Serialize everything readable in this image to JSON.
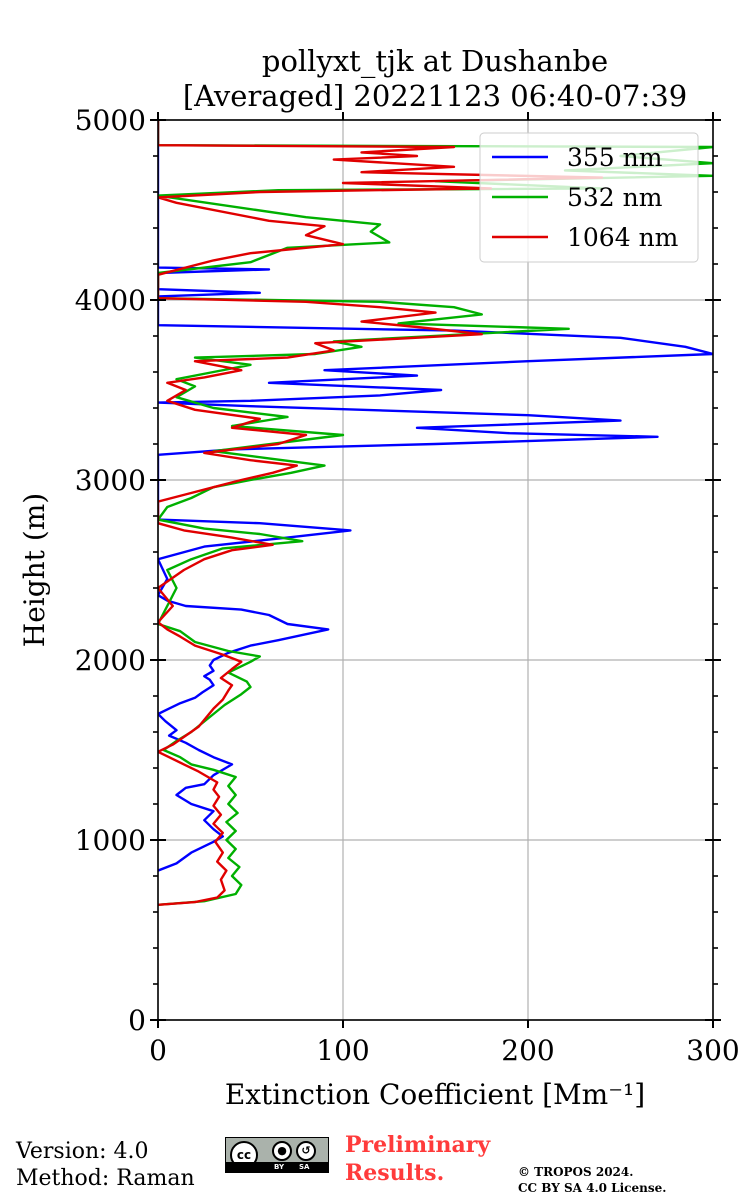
{
  "chart_data": {
    "type": "line",
    "title": [
      "pollyxt_tjk at Dushanbe",
      "[Averaged] 20221123 06:40-07:39"
    ],
    "xlabel": "Extinction Coefficient [Mm⁻¹]",
    "ylabel": "Height (m)",
    "xlim": [
      0,
      300
    ],
    "ylim": [
      0,
      5000
    ],
    "xticks": [
      0,
      100,
      200,
      300
    ],
    "yticks": [
      0,
      1000,
      2000,
      3000,
      4000,
      5000
    ],
    "grid": true,
    "legend_position": "top-right",
    "series": [
      {
        "name": "355 nm",
        "color": "#0000ff",
        "points": [
          [
            0,
            830
          ],
          [
            10,
            870
          ],
          [
            18,
            930
          ],
          [
            30,
            990
          ],
          [
            35,
            1020
          ],
          [
            30,
            1060
          ],
          [
            25,
            1110
          ],
          [
            30,
            1160
          ],
          [
            18,
            1200
          ],
          [
            10,
            1250
          ],
          [
            15,
            1290
          ],
          [
            25,
            1310
          ],
          [
            30,
            1360
          ],
          [
            40,
            1420
          ],
          [
            30,
            1460
          ],
          [
            22,
            1500
          ],
          [
            15,
            1540
          ],
          [
            6,
            1580
          ],
          [
            10,
            1610
          ],
          [
            4,
            1660
          ],
          [
            0,
            1700
          ],
          [
            6,
            1730
          ],
          [
            12,
            1760
          ],
          [
            20,
            1790
          ],
          [
            24,
            1820
          ],
          [
            30,
            1860
          ],
          [
            28,
            1890
          ],
          [
            25,
            1910
          ],
          [
            30,
            1940
          ],
          [
            28,
            1970
          ],
          [
            30,
            2000
          ],
          [
            38,
            2040
          ],
          [
            50,
            2080
          ],
          [
            65,
            2110
          ],
          [
            92,
            2170
          ],
          [
            70,
            2200
          ],
          [
            60,
            2250
          ],
          [
            45,
            2280
          ],
          [
            15,
            2300
          ],
          [
            5,
            2330
          ],
          [
            0,
            2360
          ],
          [
            5,
            2450
          ],
          [
            0,
            2560
          ],
          [
            25,
            2630
          ],
          [
            70,
            2680
          ],
          [
            104,
            2720
          ],
          [
            55,
            2760
          ],
          [
            0,
            2780
          ],
          [
            0,
            3140
          ],
          [
            40,
            3170
          ],
          [
            150,
            3200
          ],
          [
            270,
            3240
          ],
          [
            190,
            3260
          ],
          [
            140,
            3290
          ],
          [
            250,
            3330
          ],
          [
            200,
            3360
          ],
          [
            50,
            3410
          ],
          [
            0,
            3430
          ],
          [
            50,
            3440
          ],
          [
            120,
            3470
          ],
          [
            153,
            3500
          ],
          [
            60,
            3540
          ],
          [
            140,
            3580
          ],
          [
            90,
            3610
          ],
          [
            200,
            3660
          ],
          [
            300,
            3700
          ],
          [
            285,
            3740
          ],
          [
            250,
            3790
          ],
          [
            160,
            3830
          ],
          [
            0,
            3860
          ],
          [
            0,
            4020
          ],
          [
            55,
            4040
          ],
          [
            0,
            4060
          ],
          [
            0,
            4150
          ],
          [
            60,
            4170
          ],
          [
            0,
            4180
          ],
          [
            0,
            5000
          ]
        ]
      },
      {
        "name": "532 nm",
        "color": "#00b000",
        "points": [
          [
            0,
            640
          ],
          [
            25,
            660
          ],
          [
            42,
            700
          ],
          [
            45,
            750
          ],
          [
            40,
            800
          ],
          [
            44,
            850
          ],
          [
            38,
            900
          ],
          [
            42,
            950
          ],
          [
            37,
            1000
          ],
          [
            42,
            1050
          ],
          [
            37,
            1100
          ],
          [
            43,
            1150
          ],
          [
            38,
            1200
          ],
          [
            42,
            1250
          ],
          [
            38,
            1300
          ],
          [
            42,
            1350
          ],
          [
            30,
            1390
          ],
          [
            18,
            1420
          ],
          [
            12,
            1460
          ],
          [
            3,
            1500
          ],
          [
            10,
            1550
          ],
          [
            18,
            1600
          ],
          [
            24,
            1650
          ],
          [
            30,
            1700
          ],
          [
            36,
            1750
          ],
          [
            45,
            1810
          ],
          [
            50,
            1850
          ],
          [
            48,
            1880
          ],
          [
            38,
            1930
          ],
          [
            50,
            1990
          ],
          [
            55,
            2020
          ],
          [
            38,
            2050
          ],
          [
            20,
            2100
          ],
          [
            12,
            2160
          ],
          [
            0,
            2200
          ],
          [
            10,
            2400
          ],
          [
            5,
            2500
          ],
          [
            18,
            2560
          ],
          [
            35,
            2620
          ],
          [
            78,
            2660
          ],
          [
            55,
            2700
          ],
          [
            25,
            2730
          ],
          [
            0,
            2780
          ],
          [
            5,
            2850
          ],
          [
            18,
            2900
          ],
          [
            30,
            2960
          ],
          [
            50,
            3000
          ],
          [
            72,
            3040
          ],
          [
            90,
            3080
          ],
          [
            60,
            3120
          ],
          [
            30,
            3160
          ],
          [
            100,
            3250
          ],
          [
            40,
            3300
          ],
          [
            70,
            3350
          ],
          [
            30,
            3400
          ],
          [
            10,
            3460
          ],
          [
            20,
            3520
          ],
          [
            10,
            3560
          ],
          [
            30,
            3600
          ],
          [
            50,
            3640
          ],
          [
            20,
            3680
          ],
          [
            85,
            3700
          ],
          [
            110,
            3740
          ],
          [
            95,
            3770
          ],
          [
            185,
            3820
          ],
          [
            222,
            3840
          ],
          [
            130,
            3870
          ],
          [
            175,
            3920
          ],
          [
            160,
            3960
          ],
          [
            120,
            3990
          ],
          [
            0,
            4010
          ],
          [
            0,
            4150
          ],
          [
            50,
            4210
          ],
          [
            70,
            4290
          ],
          [
            125,
            4320
          ],
          [
            115,
            4380
          ],
          [
            120,
            4420
          ],
          [
            80,
            4460
          ],
          [
            13,
            4560
          ],
          [
            0,
            4580
          ],
          [
            65,
            4610
          ],
          [
            240,
            4620
          ],
          [
            150,
            4660
          ],
          [
            300,
            4690
          ],
          [
            220,
            4720
          ],
          [
            300,
            4760
          ],
          [
            250,
            4800
          ],
          [
            300,
            4850
          ],
          [
            0,
            4860
          ],
          [
            0,
            5000
          ]
        ]
      },
      {
        "name": "1064 nm",
        "color": "#e00000",
        "points": [
          [
            0,
            640
          ],
          [
            20,
            655
          ],
          [
            32,
            680
          ],
          [
            36,
            720
          ],
          [
            34,
            780
          ],
          [
            37,
            830
          ],
          [
            32,
            880
          ],
          [
            35,
            930
          ],
          [
            31,
            990
          ],
          [
            35,
            1040
          ],
          [
            30,
            1090
          ],
          [
            34,
            1140
          ],
          [
            30,
            1190
          ],
          [
            33,
            1240
          ],
          [
            30,
            1280
          ],
          [
            32,
            1320
          ],
          [
            22,
            1380
          ],
          [
            14,
            1420
          ],
          [
            6,
            1460
          ],
          [
            0,
            1490
          ],
          [
            8,
            1530
          ],
          [
            15,
            1580
          ],
          [
            22,
            1630
          ],
          [
            26,
            1680
          ],
          [
            30,
            1730
          ],
          [
            35,
            1780
          ],
          [
            38,
            1830
          ],
          [
            40,
            1860
          ],
          [
            34,
            1900
          ],
          [
            40,
            1950
          ],
          [
            45,
            1990
          ],
          [
            35,
            2030
          ],
          [
            20,
            2080
          ],
          [
            12,
            2130
          ],
          [
            5,
            2170
          ],
          [
            0,
            2210
          ],
          [
            8,
            2300
          ],
          [
            0,
            2400
          ],
          [
            14,
            2500
          ],
          [
            25,
            2560
          ],
          [
            40,
            2610
          ],
          [
            62,
            2640
          ],
          [
            40,
            2680
          ],
          [
            14,
            2720
          ],
          [
            0,
            2760
          ],
          [
            0,
            2880
          ],
          [
            15,
            2920
          ],
          [
            30,
            2960
          ],
          [
            45,
            3000
          ],
          [
            62,
            3040
          ],
          [
            75,
            3080
          ],
          [
            50,
            3110
          ],
          [
            25,
            3150
          ],
          [
            65,
            3200
          ],
          [
            80,
            3250
          ],
          [
            40,
            3290
          ],
          [
            55,
            3340
          ],
          [
            20,
            3390
          ],
          [
            5,
            3440
          ],
          [
            15,
            3500
          ],
          [
            5,
            3540
          ],
          [
            25,
            3570
          ],
          [
            45,
            3610
          ],
          [
            20,
            3660
          ],
          [
            70,
            3680
          ],
          [
            95,
            3720
          ],
          [
            85,
            3760
          ],
          [
            175,
            3810
          ],
          [
            140,
            3850
          ],
          [
            110,
            3880
          ],
          [
            150,
            3930
          ],
          [
            120,
            3960
          ],
          [
            80,
            3990
          ],
          [
            0,
            4010
          ],
          [
            0,
            4140
          ],
          [
            30,
            4220
          ],
          [
            50,
            4260
          ],
          [
            100,
            4310
          ],
          [
            80,
            4360
          ],
          [
            90,
            4410
          ],
          [
            60,
            4440
          ],
          [
            10,
            4540
          ],
          [
            0,
            4570
          ],
          [
            55,
            4600
          ],
          [
            180,
            4620
          ],
          [
            100,
            4650
          ],
          [
            240,
            4680
          ],
          [
            110,
            4710
          ],
          [
            160,
            4740
          ],
          [
            95,
            4780
          ],
          [
            140,
            4800
          ],
          [
            110,
            4820
          ],
          [
            160,
            4850
          ],
          [
            0,
            4860
          ],
          [
            0,
            5000
          ]
        ]
      }
    ]
  },
  "footer": {
    "version": "Version: 4.0",
    "method": "Method: Raman",
    "license_badge": {
      "cc": "cc",
      "by": "BY",
      "sa": "SA"
    },
    "preliminary_line1": "Preliminary",
    "preliminary_line2": "Results.",
    "copyright_line1": "© TROPOS 2024.",
    "copyright_line2": "CC BY SA 4.0 License."
  }
}
